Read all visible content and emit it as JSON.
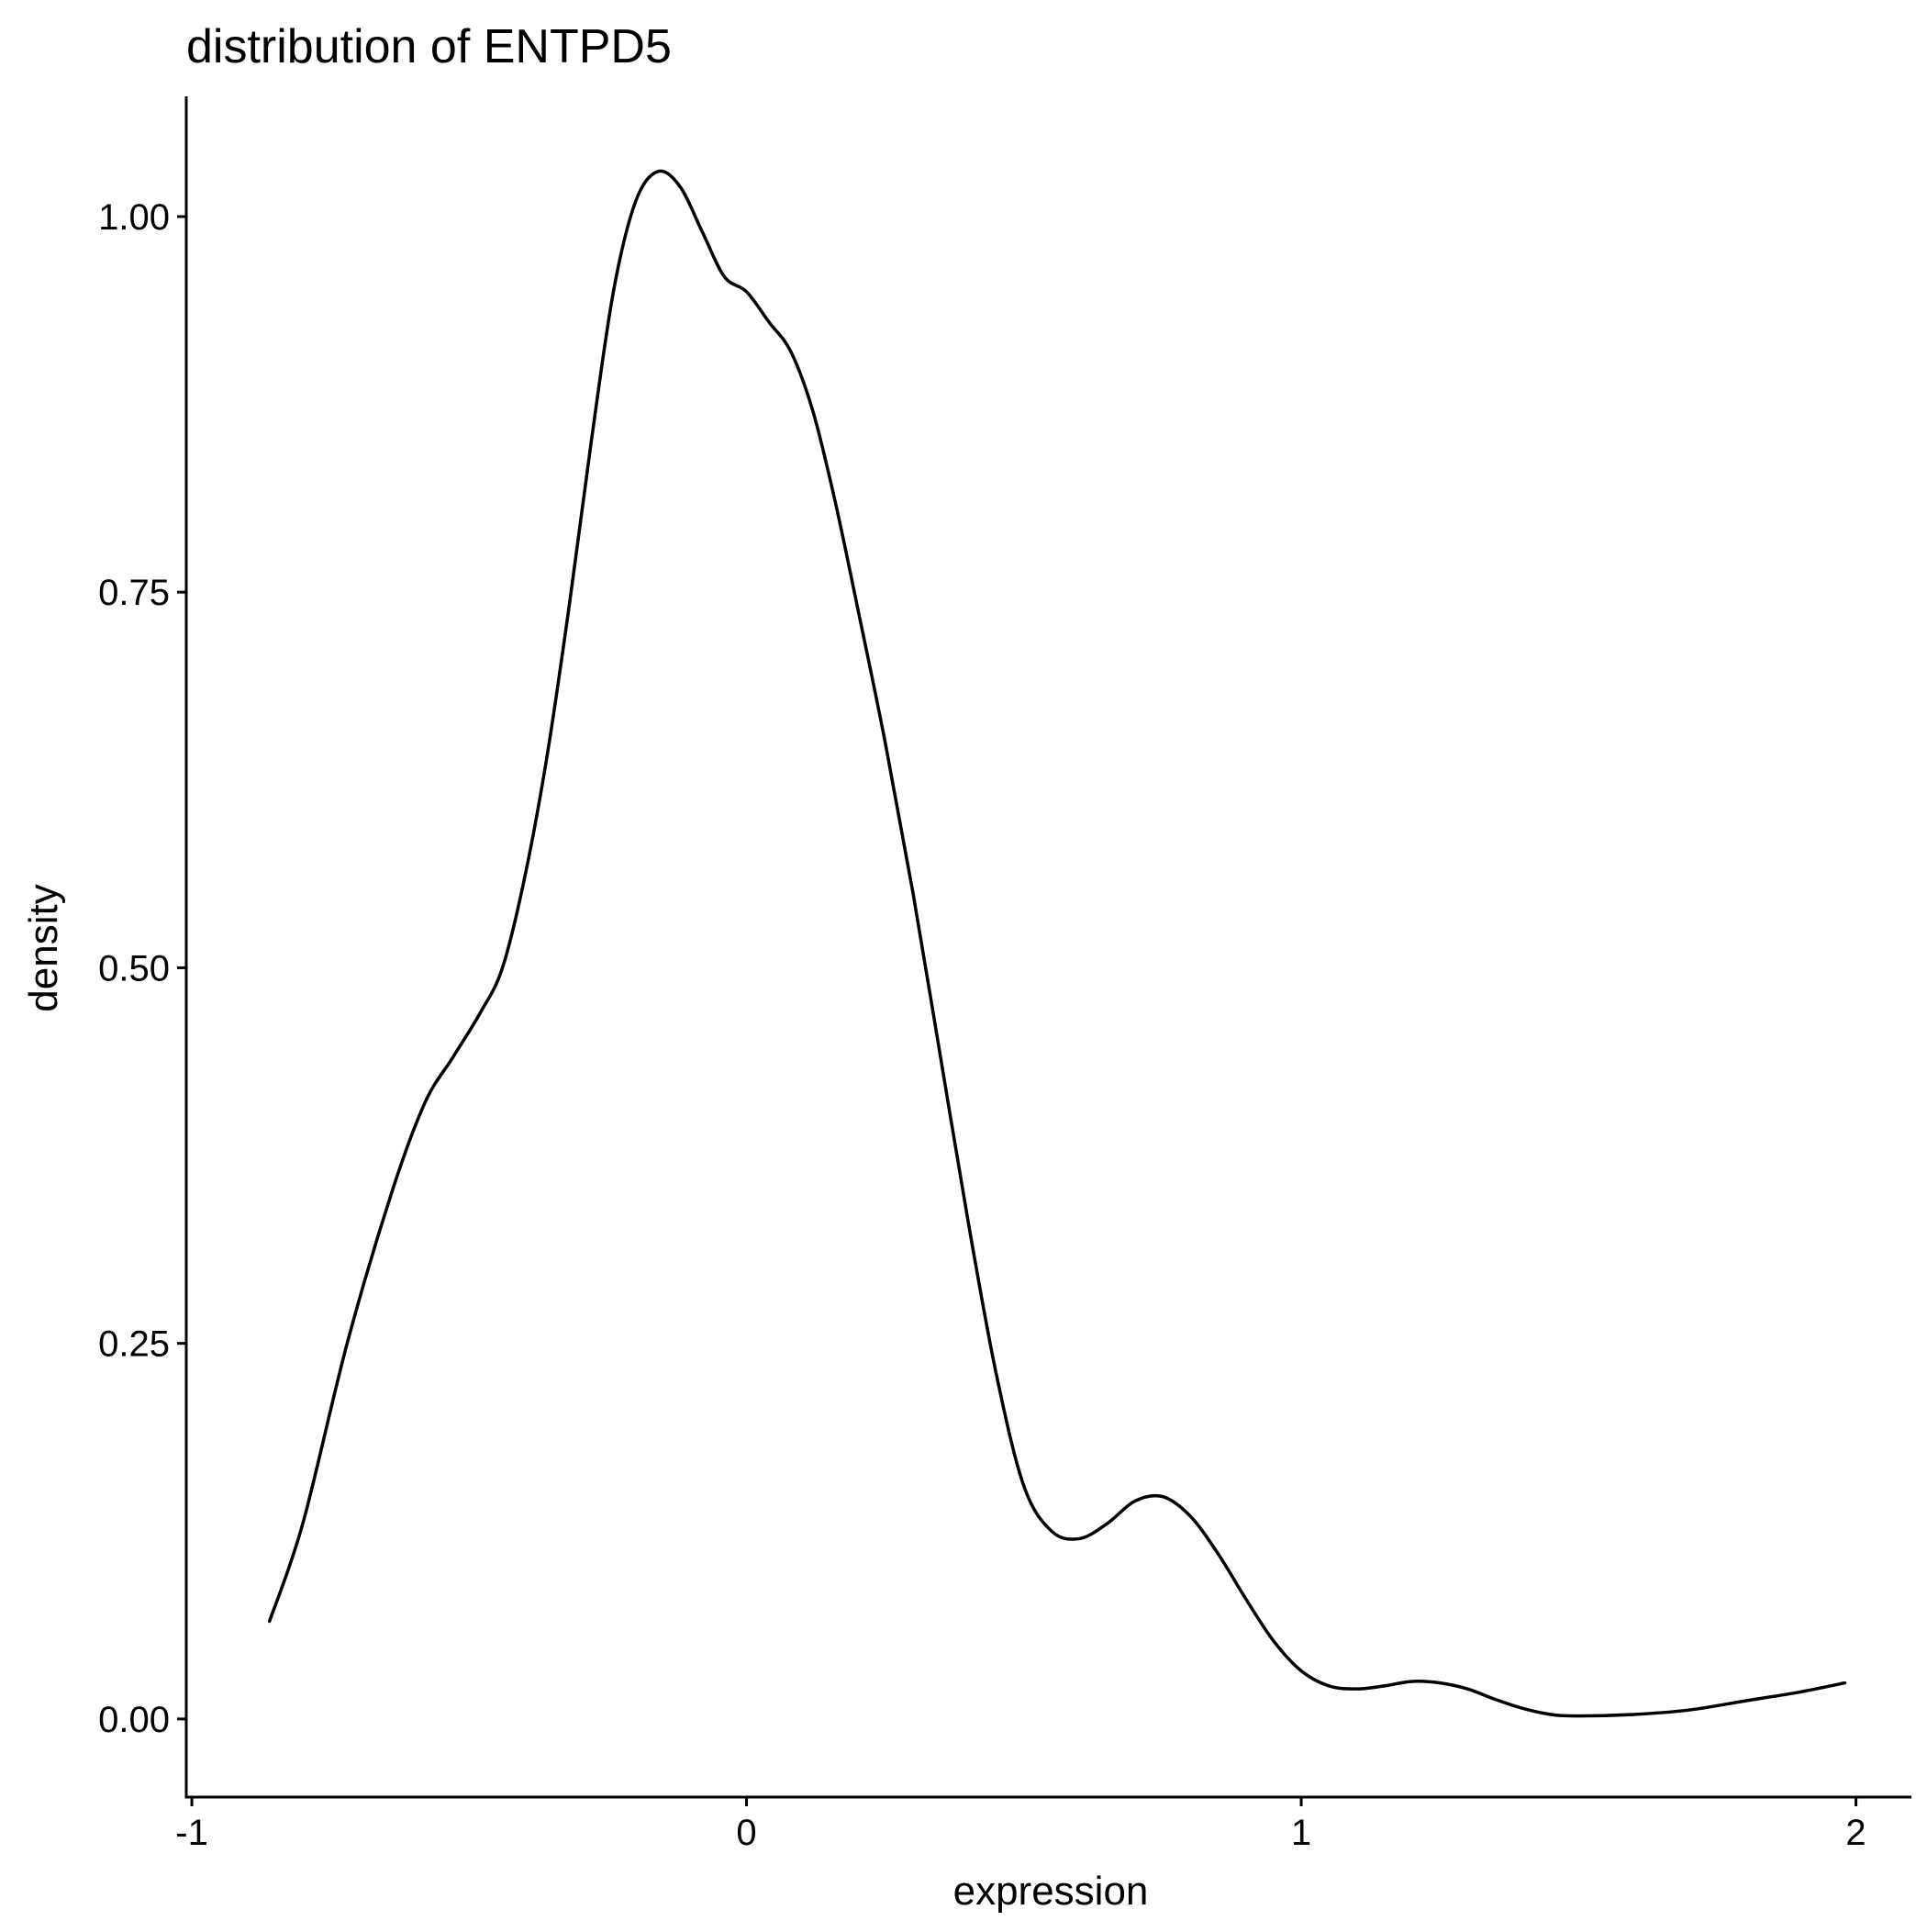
{
  "chart_data": {
    "type": "line",
    "title": "distribution of ENTPD5",
    "xlabel": "expression",
    "ylabel": "density",
    "xlim": [
      -1.01,
      2.1
    ],
    "ylim": [
      -0.052,
      1.08
    ],
    "x_ticks": [
      -1,
      0,
      1,
      2
    ],
    "x_tick_labels": [
      "-1",
      "0",
      "1",
      "2"
    ],
    "y_ticks": [
      0,
      0.25,
      0.5,
      0.75,
      1.0
    ],
    "y_tick_labels": [
      "0.00",
      "0.25",
      "0.50",
      "0.75",
      "1.00"
    ],
    "grid": false,
    "legend": "none",
    "line_color": "#000000",
    "series": [
      {
        "x": [
          -0.86,
          -0.8,
          -0.72,
          -0.64,
          -0.58,
          -0.53,
          -0.48,
          -0.44,
          -0.4,
          -0.36,
          -0.32,
          -0.28,
          -0.24,
          -0.2,
          -0.16,
          -0.12,
          -0.08,
          -0.04,
          0.0,
          0.04,
          0.08,
          0.12,
          0.16,
          0.2,
          0.25,
          0.3,
          0.35,
          0.4,
          0.45,
          0.5,
          0.55,
          0.6,
          0.65,
          0.7,
          0.75,
          0.8,
          0.85,
          0.9,
          0.95,
          1.0,
          1.05,
          1.1,
          1.15,
          1.2,
          1.25,
          1.3,
          1.35,
          1.4,
          1.45,
          1.5,
          1.6,
          1.7,
          1.8,
          1.9,
          1.98
        ],
        "y": [
          0.065,
          0.13,
          0.25,
          0.35,
          0.41,
          0.44,
          0.47,
          0.5,
          0.56,
          0.64,
          0.74,
          0.85,
          0.95,
          1.01,
          1.03,
          1.02,
          0.99,
          0.96,
          0.95,
          0.93,
          0.91,
          0.87,
          0.81,
          0.74,
          0.65,
          0.55,
          0.44,
          0.33,
          0.23,
          0.155,
          0.125,
          0.12,
          0.13,
          0.145,
          0.148,
          0.135,
          0.11,
          0.08,
          0.052,
          0.032,
          0.022,
          0.02,
          0.022,
          0.025,
          0.024,
          0.02,
          0.013,
          0.007,
          0.003,
          0.002,
          0.003,
          0.006,
          0.012,
          0.018,
          0.024
        ]
      }
    ]
  }
}
